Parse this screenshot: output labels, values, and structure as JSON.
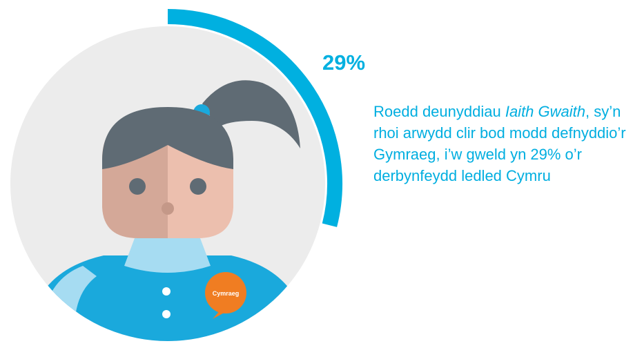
{
  "chart_data": {
    "type": "gauge",
    "values": [
      29
    ],
    "value_labels": [
      "29%"
    ],
    "ylim": [
      0,
      100
    ],
    "color": "#00b0e0",
    "caption": [
      "Roedd deunyddiau ",
      "Iaith Gwaith",
      ", sy’n rhoi arwydd clir bod modd defnyddio’r Gymraeg, i’w gweld yn 29% o’r derbynfeydd ledled Cymru"
    ],
    "badge": "Cymraeg"
  }
}
